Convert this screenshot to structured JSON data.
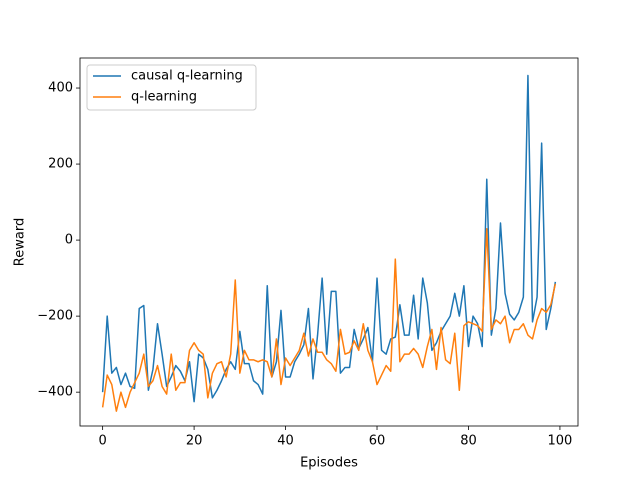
{
  "chart_data": {
    "type": "line",
    "xlabel": "Episodes",
    "ylabel": "Reward",
    "x": [
      0,
      1,
      2,
      3,
      4,
      5,
      6,
      7,
      8,
      9,
      10,
      11,
      12,
      13,
      14,
      15,
      16,
      17,
      18,
      19,
      20,
      21,
      22,
      23,
      24,
      25,
      26,
      27,
      28,
      29,
      30,
      31,
      32,
      33,
      34,
      35,
      36,
      37,
      38,
      39,
      40,
      41,
      42,
      43,
      44,
      45,
      46,
      47,
      48,
      49,
      50,
      51,
      52,
      53,
      54,
      55,
      56,
      57,
      58,
      59,
      60,
      61,
      62,
      63,
      64,
      65,
      66,
      67,
      68,
      69,
      70,
      71,
      72,
      73,
      74,
      75,
      76,
      77,
      78,
      79,
      80,
      81,
      82,
      83,
      84,
      85,
      86,
      87,
      88,
      89,
      90,
      91,
      92,
      93,
      94,
      95,
      96,
      97,
      98,
      99
    ],
    "series": [
      {
        "name": "causal q-learning",
        "color": "#1f77b4",
        "values": [
          -400,
          -200,
          -350,
          -335,
          -380,
          -350,
          -385,
          -390,
          -180,
          -172,
          -395,
          -340,
          -220,
          -300,
          -385,
          -360,
          -330,
          -345,
          -370,
          -320,
          -425,
          -300,
          -310,
          -340,
          -415,
          -395,
          -370,
          -340,
          -320,
          -340,
          -240,
          -325,
          -325,
          -370,
          -380,
          -405,
          -120,
          -360,
          -320,
          -185,
          -360,
          -360,
          -320,
          -300,
          -275,
          -180,
          -365,
          -250,
          -100,
          -300,
          -135,
          -135,
          -350,
          -335,
          -335,
          -235,
          -285,
          -260,
          -230,
          -320,
          -100,
          -290,
          -300,
          -260,
          -255,
          -170,
          -250,
          -250,
          -145,
          -260,
          -100,
          -165,
          -290,
          -270,
          -240,
          -220,
          -200,
          -140,
          -200,
          -120,
          -280,
          -200,
          -220,
          -280,
          160,
          -250,
          -180,
          45,
          -140,
          -195,
          -210,
          -190,
          -150,
          433,
          -215,
          -150,
          255,
          -235,
          -180,
          -110
        ]
      },
      {
        "name": "q-learning",
        "color": "#ff7f0e",
        "values": [
          -440,
          -355,
          -380,
          -450,
          -400,
          -440,
          -400,
          -375,
          -350,
          -300,
          -385,
          -370,
          -330,
          -385,
          -405,
          -300,
          -395,
          -375,
          -375,
          -290,
          -270,
          -290,
          -300,
          -415,
          -350,
          -325,
          -320,
          -360,
          -300,
          -105,
          -350,
          -290,
          -315,
          -315,
          -320,
          -315,
          -320,
          -360,
          -260,
          -380,
          -310,
          -330,
          -310,
          -290,
          -245,
          -305,
          -260,
          -295,
          -295,
          -315,
          -325,
          -345,
          -235,
          -300,
          -295,
          -265,
          -290,
          -220,
          -290,
          -320,
          -380,
          -355,
          -330,
          -345,
          -50,
          -320,
          -300,
          -300,
          -285,
          -300,
          -335,
          -280,
          -235,
          -340,
          -230,
          -315,
          -325,
          -245,
          -395,
          -225,
          -215,
          -220,
          -225,
          -240,
          30,
          -235,
          -210,
          -220,
          -200,
          -270,
          -235,
          -235,
          -220,
          -250,
          -260,
          -210,
          -180,
          -190,
          -170,
          -115
        ]
      }
    ],
    "xlim": [
      -4.95,
      103.95
    ],
    "ylim": [
      -489,
      479
    ],
    "xticks": [
      0,
      20,
      40,
      60,
      80,
      100
    ],
    "yticks": [
      {
        "value": -400,
        "label": "−400"
      },
      {
        "value": -200,
        "label": "−200"
      },
      0,
      200,
      400
    ],
    "legend": "upper left",
    "grid": false
  }
}
